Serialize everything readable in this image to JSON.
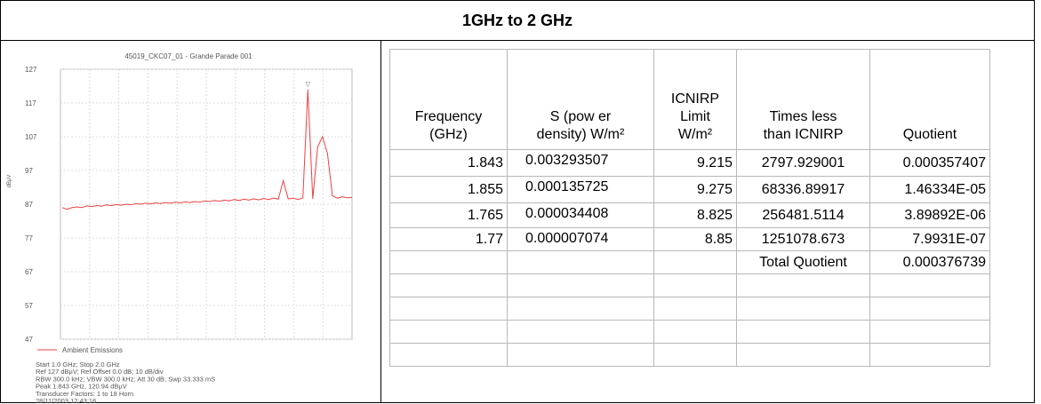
{
  "title": "1GHz to 2 GHz",
  "figure": {
    "type": "line",
    "title": "45019_CKC07_01 - Grande Parade 001",
    "y_label": "dBµV",
    "ylim": [
      47,
      127
    ],
    "yticks": [
      47,
      57,
      67,
      77,
      87,
      97,
      107,
      117,
      127
    ],
    "grid": true,
    "marker": "▽",
    "series": [
      {
        "name": "Ambient Emissions",
        "color": "#f04040",
        "values": [
          86,
          85.5,
          86,
          86.2,
          86,
          86.5,
          86.3,
          86.6,
          86.4,
          86.8,
          86.6,
          86.9,
          86.7,
          87,
          86.8,
          87.2,
          87,
          87.3,
          87.1,
          87.4,
          87.2,
          87.5,
          87.3,
          87.6,
          87.4,
          87.7,
          87.5,
          87.8,
          87.6,
          88,
          87.8,
          88.1,
          87.9,
          88.2,
          88,
          88.4,
          88.1,
          88.5,
          88.2,
          88.6,
          88.3,
          88.7,
          88.4,
          88.8,
          88.5,
          94,
          88.6,
          88.8,
          88.4,
          88.9,
          121,
          88.6,
          104,
          107,
          102,
          89.5,
          88.8,
          89.2,
          88.9,
          89
        ]
      }
    ],
    "notes": [
      "Start 1.0 GHz; Stop 2.0 GHz",
      "Ref 127 dBµV; Ref Offset 0.0 dB; 10 dB/div",
      "RBW 300.0 kHz; VBW 300.0 kHz; Att 30 dB; Swp 33.333 mS",
      "Peak 1.843 GHz, 120.94 dBµV",
      "Transducer Factors: 1 to 18 Horn",
      "28/11/2003 12:43:16"
    ]
  },
  "table": {
    "headers": [
      [
        "Frequency",
        "(GHz)"
      ],
      [
        "S (pow er",
        "density) W/m²"
      ],
      [
        "ICNIRP",
        "Limit",
        "W/m²"
      ],
      [
        "Times less",
        "than ICNIRP"
      ],
      [
        "Quotient"
      ]
    ],
    "rows": [
      [
        "1.843",
        "0.003293507",
        "9.215",
        "2797.929001",
        "0.000357407"
      ],
      [
        "1.855",
        "0.000135725",
        "9.275",
        "68336.89917",
        "1.46334E-05"
      ],
      [
        "1.765",
        "0.000034408",
        "8.825",
        "256481.5114",
        "3.89892E-06"
      ],
      [
        "1.77",
        "0.000007074",
        "8.85",
        "1251078.673",
        "7.9931E-07"
      ]
    ],
    "total": {
      "label": "Total Quotient",
      "value": "0.000376739"
    }
  }
}
